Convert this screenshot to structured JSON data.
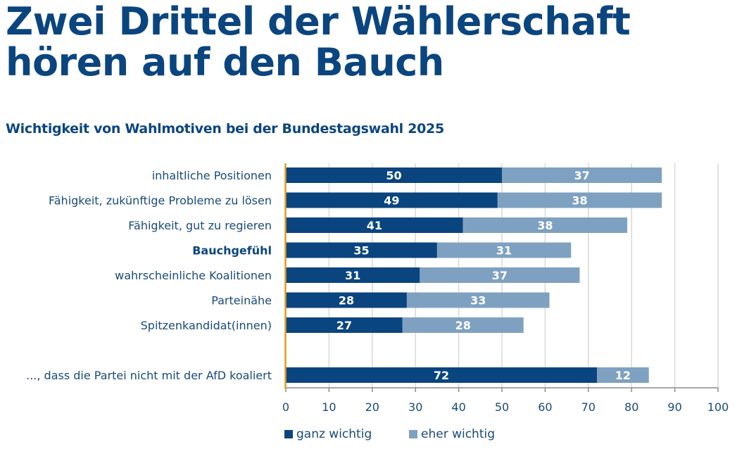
{
  "title_line1": "Zwei Drittel der Wählerschaft",
  "title_line2": "hören auf den Bauch",
  "subtitle": "Wichtigkeit von Wahlmotiven bei der Bundestagswahl 2025",
  "colors": {
    "ganz": "#0b457f",
    "eher": "#7fa1c1",
    "axis": "#e39b1a",
    "grid": "#d9d9d9",
    "text": "#1a4a78"
  },
  "chart_data": {
    "type": "bar",
    "orientation": "horizontal",
    "stacked": true,
    "title": "Zwei Drittel der Wählerschaft hören auf den Bauch",
    "subtitle": "Wichtigkeit von Wahlmotiven bei der Bundestagswahl 2025",
    "categories": [
      "inhaltliche Positionen",
      "Fähigkeit, zukünftige Probleme zu lösen",
      "Fähigkeit, gut zu regieren",
      "Bauchgefühl",
      "wahrscheinliche Koalitionen",
      "Parteinähe",
      "Spitzenkandidat(innen)",
      "",
      "..., dass die Partei nicht mit der AfD koaliert"
    ],
    "highlight_category": "Bauchgefühl",
    "series": [
      {
        "name": "ganz wichtig",
        "values": [
          50,
          49,
          41,
          35,
          31,
          28,
          27,
          null,
          72
        ]
      },
      {
        "name": "eher wichtig",
        "values": [
          37,
          38,
          38,
          31,
          37,
          33,
          28,
          null,
          12
        ]
      }
    ],
    "xlabel": "",
    "ylabel": "",
    "xlim": [
      0,
      100
    ],
    "xticks": [
      0,
      10,
      20,
      30,
      40,
      50,
      60,
      70,
      80,
      90,
      100
    ],
    "grid": true,
    "legend": "bottom"
  },
  "legend": [
    {
      "label": "ganz wichtig"
    },
    {
      "label": "eher wichtig"
    }
  ]
}
